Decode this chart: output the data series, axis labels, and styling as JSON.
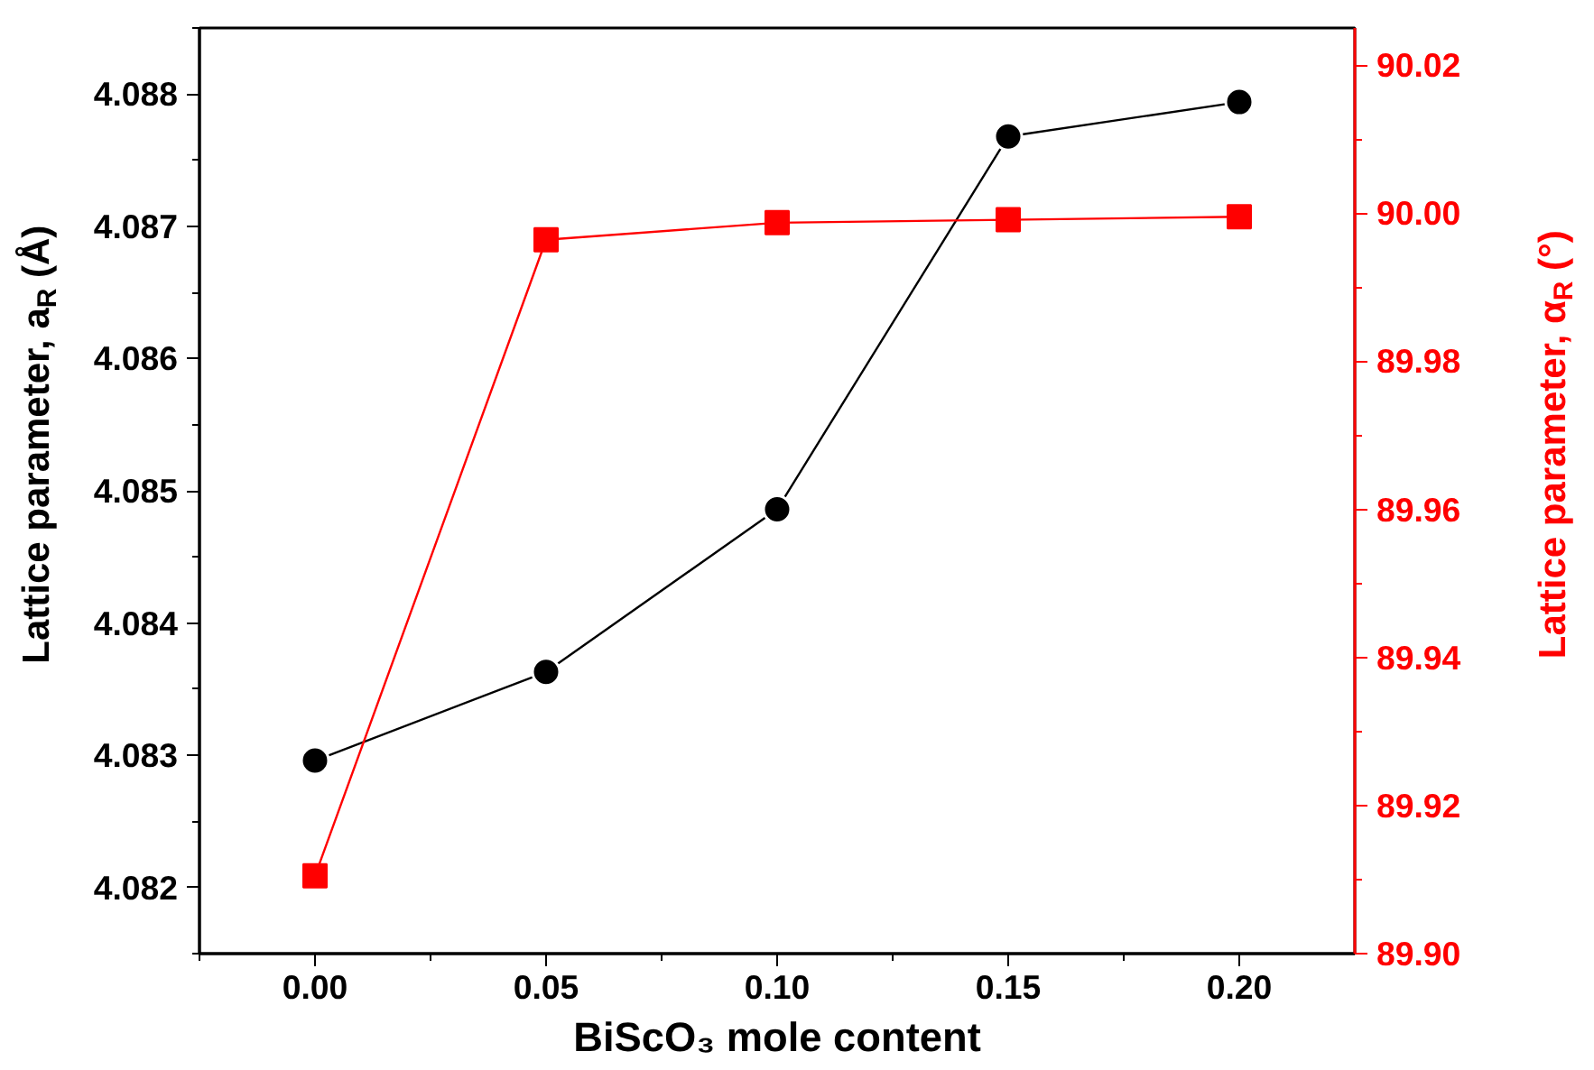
{
  "chart_data": {
    "type": "line",
    "xlabel": "BiScO₃ mole content",
    "ylabel": "Lattice parameter, a$_{R}$ (Å)",
    "y2label": "Lattice parameter, α$_{R}$ (°)",
    "x": [
      0.0,
      0.05,
      0.1,
      0.15,
      0.2
    ],
    "series": [
      {
        "color": "#000000",
        "marker": "circle",
        "values": [
          4.08296,
          4.08363,
          4.08486,
          4.08768,
          4.08794
        ]
      },
      {
        "color": "#ff0000",
        "marker": "square",
        "axis": "y2",
        "values": [
          89.9105,
          89.9964,
          89.9987,
          89.9991,
          89.9995
        ]
      }
    ],
    "xlim": [
      -0.025,
      0.225
    ],
    "xticks": [
      {
        "value": 0.0,
        "label": "0.00"
      },
      {
        "value": 0.05,
        "label": "0.05"
      },
      {
        "value": 0.1,
        "label": "0.10"
      },
      {
        "value": 0.15,
        "label": "0.15"
      },
      {
        "value": 0.2,
        "label": "0.20"
      }
    ],
    "ylim": [
      4.0815,
      4.0885
    ],
    "yticks": [
      4.082,
      4.083,
      4.084,
      4.085,
      4.086,
      4.087,
      4.088
    ],
    "y2lim": [
      89.9,
      90.025
    ],
    "y2ticks": [
      {
        "value": 89.9,
        "label": "89.90"
      },
      {
        "value": 89.92,
        "label": "89.92"
      },
      {
        "value": 89.94,
        "label": "89.94"
      },
      {
        "value": 89.96,
        "label": "89.96"
      },
      {
        "value": 89.98,
        "label": "89.98"
      },
      {
        "value": 90.0,
        "label": "90.00"
      },
      {
        "value": 90.02,
        "label": "90.02"
      }
    ],
    "grid": false,
    "legend": false,
    "line_style": "solid"
  }
}
